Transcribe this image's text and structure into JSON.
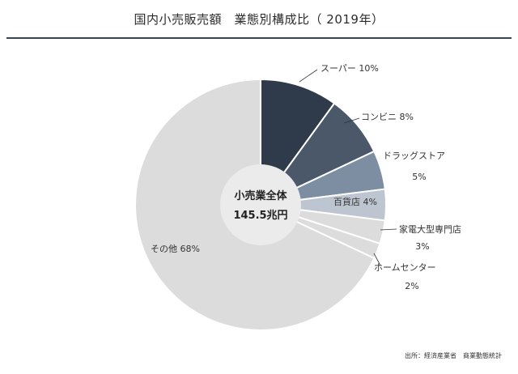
{
  "title": "国内小売販売額　業態別構成比（ 2019年）",
  "center_label": {
    "line1": "小売業全体",
    "line2": "145.5兆円"
  },
  "source": "出所：経済産業省　商業動態統計",
  "chart_data": {
    "type": "pie",
    "title": "国内小売販売額　業態別構成比（ 2019年）",
    "unit": "%",
    "donut": true,
    "start": "12 o'clock",
    "direction": "clockwise",
    "slices": [
      {
        "label": "スーパー",
        "value": 10,
        "value_text": "10%",
        "color": "#2f3b4a"
      },
      {
        "label": "コンビニ",
        "value": 8,
        "value_text": "8%",
        "color": "#4a586a"
      },
      {
        "label": "ドラッグストア",
        "value": 5,
        "value_text": "5%",
        "color": "#7d8ea3"
      },
      {
        "label": "百貨店",
        "value": 4,
        "value_text": "4%",
        "color": "#bcc5d0"
      },
      {
        "label": "家電大型専門店",
        "value": 3,
        "value_text": "3%",
        "color": "#dcdcdc"
      },
      {
        "label": "ホームセンター",
        "value": 2,
        "value_text": "2%",
        "color": "#dcdcdc"
      },
      {
        "label": "その他",
        "value": 68,
        "value_text": "68%",
        "color": "#dcdcdc"
      }
    ]
  }
}
